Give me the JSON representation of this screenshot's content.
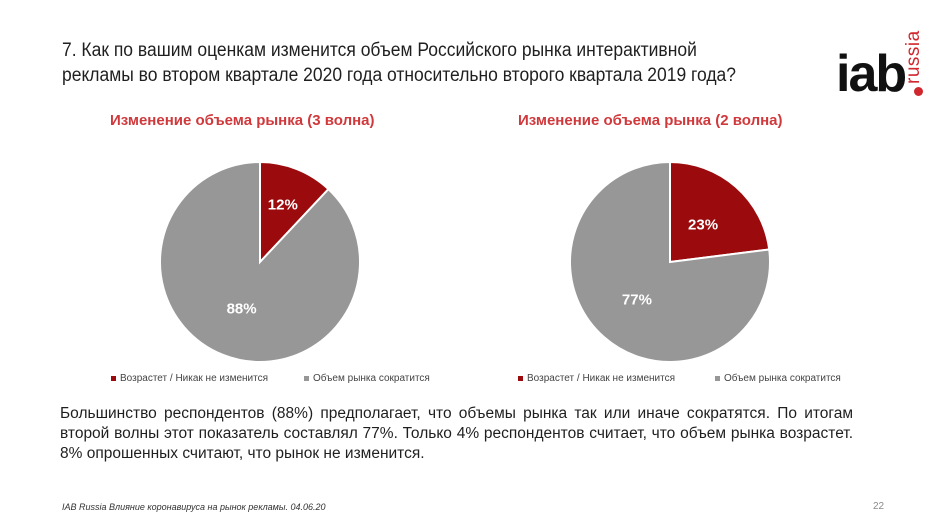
{
  "question": {
    "line1": "7. Как по вашим оценкам изменится объем Российского рынка интерактивной",
    "line2": "рекламы во втором квартале 2020 года относительно второго квартала 2019 года?"
  },
  "logo": {
    "main": "iab",
    "sub": "russia"
  },
  "colors": {
    "increase": "#9b0a0c",
    "decrease": "#979797",
    "accent": "#d0393c"
  },
  "chart_data": [
    {
      "type": "pie",
      "title": "Изменение объема рынка (3 волна)",
      "categories": [
        "Возрастет / Никак не изменится",
        "Объем рынка сократится"
      ],
      "values": [
        12,
        88
      ],
      "labels": [
        "12%",
        "88%"
      ],
      "legend_position": "bottom"
    },
    {
      "type": "pie",
      "title": "Изменение объема рынка (2 волна)",
      "categories": [
        "Возрастет / Никак не изменится",
        "Объем рынка сократится"
      ],
      "values": [
        23,
        77
      ],
      "labels": [
        "23%",
        "77%"
      ],
      "legend_position": "bottom"
    }
  ],
  "summary": "Большинство респондентов (88%) предполагает, что объемы рынка так или иначе сократятся. По итогам второй волны этот показатель составлял 77%. Только 4% респондентов считает, что объем рынка возрастет. 8% опрошенных считают, что рынок не изменится.",
  "footer": "IAB Russia Влияние коронавируса на рынок рекламы. 04.06.20",
  "page_number": "22"
}
